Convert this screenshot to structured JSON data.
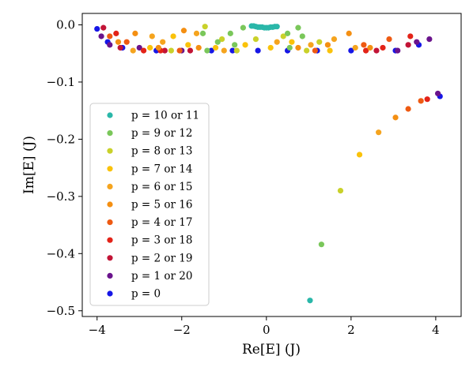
{
  "chart_data": {
    "type": "scatter",
    "xlabel": "Re[E] (J)",
    "ylabel": "Im[E] (J)",
    "xlim": [
      -4.35,
      4.6
    ],
    "ylim": [
      -0.51,
      0.02
    ],
    "x_ticks": [
      {
        "value": -4,
        "label": "−4"
      },
      {
        "value": -2,
        "label": "−2"
      },
      {
        "value": 0,
        "label": "0"
      },
      {
        "value": 2,
        "label": "2"
      },
      {
        "value": 4,
        "label": "4"
      }
    ],
    "y_ticks": [
      {
        "value": 0.0,
        "label": "0.0"
      },
      {
        "value": -0.1,
        "label": "−0.1"
      },
      {
        "value": -0.2,
        "label": "−0.2"
      },
      {
        "value": -0.3,
        "label": "−0.3"
      },
      {
        "value": -0.4,
        "label": "−0.4"
      },
      {
        "value": -0.5,
        "label": "−0.5"
      }
    ],
    "grid": false,
    "legend_position": "lower-left",
    "series": [
      {
        "name": "p = 10 or 11",
        "color": "#2ab7a9",
        "points": [
          [
            -0.35,
            -0.002
          ],
          [
            -0.3,
            -0.002
          ],
          [
            -0.25,
            -0.003
          ],
          [
            -0.2,
            -0.004
          ],
          [
            -0.15,
            -0.004
          ],
          [
            -0.1,
            -0.004
          ],
          [
            -0.05,
            -0.005
          ],
          [
            0.0,
            -0.005
          ],
          [
            0.05,
            -0.005
          ],
          [
            0.1,
            -0.004
          ],
          [
            0.15,
            -0.004
          ],
          [
            0.2,
            -0.003
          ],
          [
            0.25,
            -0.003
          ],
          [
            1.03,
            -0.482
          ]
        ]
      },
      {
        "name": "p = 9 or 12",
        "color": "#7ac75a",
        "points": [
          [
            -1.4,
            -0.045
          ],
          [
            -1.15,
            -0.03
          ],
          [
            -0.85,
            -0.015
          ],
          [
            -0.55,
            -0.005
          ],
          [
            0.5,
            -0.015
          ],
          [
            0.75,
            -0.005
          ],
          [
            0.85,
            -0.02
          ],
          [
            1.3,
            -0.384
          ]
        ]
      },
      {
        "name": "p = 9 or 12",
        "color": "#7ac75a",
        "points": [
          [
            -1.5,
            -0.015
          ],
          [
            -0.75,
            -0.035
          ],
          [
            0.55,
            -0.04
          ]
        ]
      },
      {
        "name": "p = 8 or 13",
        "color": "#c9d12a",
        "points": [
          [
            -2.25,
            -0.045
          ],
          [
            -1.45,
            -0.003
          ],
          [
            -1.05,
            -0.025
          ],
          [
            -0.7,
            -0.045
          ],
          [
            -0.25,
            -0.025
          ],
          [
            0.4,
            -0.02
          ],
          [
            0.95,
            -0.045
          ],
          [
            1.25,
            -0.03
          ],
          [
            1.75,
            -0.29
          ]
        ]
      },
      {
        "name": "p = 7 or 14",
        "color": "#fac20a",
        "points": [
          [
            -2.75,
            -0.04
          ],
          [
            -2.2,
            -0.02
          ],
          [
            -1.85,
            -0.035
          ],
          [
            -1.2,
            -0.04
          ],
          [
            -0.5,
            -0.035
          ],
          [
            0.1,
            -0.04
          ],
          [
            0.6,
            -0.03
          ],
          [
            1.5,
            -0.045
          ],
          [
            2.2,
            -0.227
          ]
        ]
      },
      {
        "name": "p = 6 or 15",
        "color": "#f5a41e",
        "points": [
          [
            -3.15,
            -0.045
          ],
          [
            -2.7,
            -0.02
          ],
          [
            -2.45,
            -0.03
          ],
          [
            -1.65,
            -0.015
          ],
          [
            -1.0,
            -0.045
          ],
          [
            0.25,
            -0.03
          ],
          [
            1.05,
            -0.035
          ],
          [
            1.6,
            -0.025
          ],
          [
            2.1,
            -0.04
          ],
          [
            2.65,
            -0.188
          ]
        ]
      },
      {
        "name": "p = 5 or 16",
        "color": "#f48f12",
        "points": [
          [
            -3.5,
            -0.03
          ],
          [
            -3.1,
            -0.015
          ],
          [
            -2.55,
            -0.04
          ],
          [
            -1.95,
            -0.01
          ],
          [
            -1.6,
            -0.04
          ],
          [
            0.75,
            -0.04
          ],
          [
            1.45,
            -0.035
          ],
          [
            1.95,
            -0.015
          ],
          [
            2.45,
            -0.04
          ],
          [
            3.05,
            -0.162
          ]
        ]
      },
      {
        "name": "p = 4 or 17",
        "color": "#ee5a12",
        "points": [
          [
            -3.7,
            -0.02
          ],
          [
            -3.3,
            -0.03
          ],
          [
            -2.05,
            -0.045
          ],
          [
            1.15,
            -0.045
          ],
          [
            2.3,
            -0.035
          ],
          [
            2.9,
            -0.025
          ],
          [
            3.35,
            -0.147
          ],
          [
            3.65,
            -0.133
          ]
        ]
      },
      {
        "name": "p = 3 or 18",
        "color": "#e32318",
        "points": [
          [
            -3.55,
            -0.015
          ],
          [
            -2.9,
            -0.045
          ],
          [
            -2.5,
            -0.045
          ],
          [
            2.35,
            -0.045
          ],
          [
            2.75,
            -0.04
          ],
          [
            3.4,
            -0.02
          ],
          [
            3.8,
            -0.13
          ]
        ]
      },
      {
        "name": "p = 2 or 19",
        "color": "#c21436",
        "points": [
          [
            -3.85,
            -0.005
          ],
          [
            -3.45,
            -0.04
          ],
          [
            -2.4,
            -0.045
          ],
          [
            -1.8,
            -0.045
          ],
          [
            2.6,
            -0.045
          ],
          [
            3.35,
            -0.035
          ]
        ]
      },
      {
        "name": "p = 1 or 20",
        "color": "#6a138c",
        "points": [
          [
            -3.9,
            -0.02
          ],
          [
            -3.7,
            -0.035
          ],
          [
            -3.0,
            -0.04
          ],
          [
            -2.0,
            -0.045
          ],
          [
            3.1,
            -0.045
          ],
          [
            3.55,
            -0.03
          ],
          [
            3.85,
            -0.025
          ],
          [
            4.05,
            -0.12
          ]
        ]
      },
      {
        "name": "p = 0",
        "color": "#1616e6",
        "points": [
          [
            -4.0,
            -0.007
          ],
          [
            -3.75,
            -0.03
          ],
          [
            -3.4,
            -0.04
          ],
          [
            -2.6,
            -0.045
          ],
          [
            -1.3,
            -0.045
          ],
          [
            -0.8,
            -0.045
          ],
          [
            -0.2,
            -0.045
          ],
          [
            0.5,
            -0.045
          ],
          [
            1.2,
            -0.045
          ],
          [
            2.0,
            -0.045
          ],
          [
            3.05,
            -0.045
          ],
          [
            3.6,
            -0.035
          ],
          [
            4.1,
            -0.125
          ]
        ]
      }
    ],
    "legend": [
      {
        "label": "p = 10 or 11",
        "color": "#2ab7a9"
      },
      {
        "label": "p = 9 or 12",
        "color": "#7ac75a"
      },
      {
        "label": "p = 8 or 13",
        "color": "#c9d12a"
      },
      {
        "label": "p = 7 or 14",
        "color": "#fac20a"
      },
      {
        "label": "p = 6 or 15",
        "color": "#f5a41e"
      },
      {
        "label": "p = 5 or 16",
        "color": "#f48f12"
      },
      {
        "label": "p = 4 or 17",
        "color": "#ee5a12"
      },
      {
        "label": "p = 3 or 18",
        "color": "#e32318"
      },
      {
        "label": "p = 2 or 19",
        "color": "#c21436"
      },
      {
        "label": "p = 1 or 20",
        "color": "#6a138c"
      },
      {
        "label": "p = 0",
        "color": "#1616e6"
      }
    ]
  }
}
